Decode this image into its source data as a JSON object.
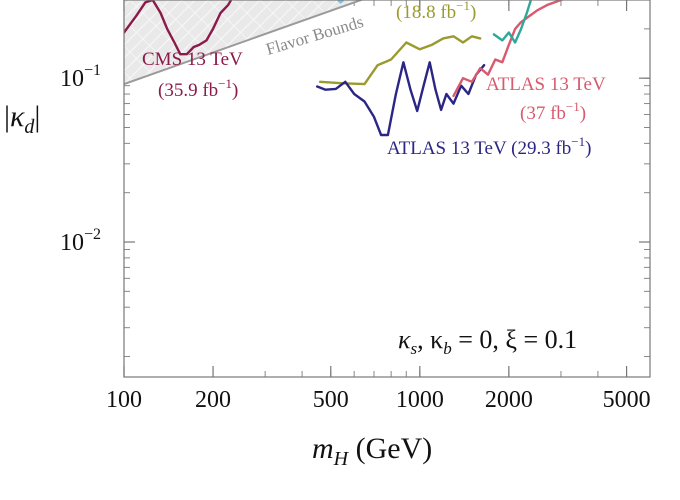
{
  "chart_data": {
    "type": "line",
    "xscale": "log",
    "yscale": "log",
    "xlim": [
      100,
      6000
    ],
    "ylim": [
      0.0015,
      0.3
    ],
    "xticks": [
      {
        "value": 100,
        "label": "100"
      },
      {
        "value": 200,
        "label": "200"
      },
      {
        "value": 500,
        "label": "500"
      },
      {
        "value": 1000,
        "label": "1000"
      },
      {
        "value": 2000,
        "label": "2000"
      },
      {
        "value": 5000,
        "label": "5000"
      }
    ],
    "yticks": [
      {
        "value": 0.1,
        "base": "10",
        "exp": "−1"
      },
      {
        "value": 0.01,
        "base": "10",
        "exp": "−2"
      }
    ],
    "xlabel": {
      "var": "m",
      "sub": "H",
      "unit": " (GeV)"
    },
    "ylabel": {
      "var": "κ",
      "sub": "d"
    },
    "parameters_text": {
      "part1": "κ",
      "sub1": "s",
      "part2": ", κ",
      "sub2": "b",
      "part3": " = 0, ξ = 0.1"
    },
    "flavor_bound": {
      "label": "Flavor Bounds",
      "color": "#9a9a9a",
      "x": [
        100,
        700
      ],
      "y": [
        0.092,
        0.32
      ]
    },
    "series": [
      {
        "name": "CMS 13 TeV",
        "lumi": "(35.9 fb",
        "color": "#8b1a4a",
        "x": [
          100,
          110,
          118,
          125,
          133,
          140,
          148,
          155,
          163,
          172,
          180,
          190,
          200,
          212,
          225,
          235
        ],
        "y": [
          0.19,
          0.24,
          0.29,
          0.3,
          0.25,
          0.2,
          0.165,
          0.14,
          0.14,
          0.155,
          0.16,
          0.17,
          0.2,
          0.25,
          0.28,
          0.32
        ]
      },
      {
        "name": "",
        "lumi": "(18.8 fb",
        "color": "#9a9a2e",
        "x": [
          460,
          550,
          650,
          720,
          800,
          900,
          1000,
          1100,
          1200,
          1300,
          1400,
          1500,
          1600
        ],
        "y": [
          0.095,
          0.093,
          0.092,
          0.12,
          0.13,
          0.165,
          0.15,
          0.16,
          0.175,
          0.18,
          0.165,
          0.18,
          0.175
        ]
      },
      {
        "name": "ATLAS 13 TeV",
        "lumi": "(29.3 fb",
        "color": "#2b2685",
        "x": [
          450,
          480,
          520,
          560,
          600,
          650,
          700,
          740,
          780,
          830,
          880,
          930,
          980,
          1030,
          1080,
          1130,
          1180,
          1230,
          1300,
          1380,
          1460,
          1550,
          1650
        ],
        "y": [
          0.089,
          0.085,
          0.086,
          0.095,
          0.08,
          0.072,
          0.058,
          0.045,
          0.045,
          0.08,
          0.125,
          0.085,
          0.063,
          0.09,
          0.125,
          0.085,
          0.064,
          0.08,
          0.07,
          0.09,
          0.08,
          0.105,
          0.12
        ]
      },
      {
        "name": "ATLAS 13 TeV",
        "lumi": "(37 fb",
        "color": "#d85a6e",
        "x": [
          1300,
          1400,
          1500,
          1600,
          1700,
          1800,
          1900,
          2000,
          2100,
          2200,
          2350,
          2500,
          2700,
          3000,
          3300
        ],
        "y": [
          0.078,
          0.1,
          0.095,
          0.115,
          0.105,
          0.13,
          0.125,
          0.16,
          0.2,
          0.22,
          0.24,
          0.26,
          0.28,
          0.3,
          0.32
        ]
      },
      {
        "name": "",
        "lumi": "",
        "color": "#2fa89a",
        "x": [
          1780,
          1900,
          2000,
          2100,
          2200,
          2300,
          2400
        ],
        "y": [
          0.185,
          0.17,
          0.19,
          0.165,
          0.2,
          0.25,
          0.32
        ]
      },
      {
        "name": "",
        "lumi": "",
        "color": "#6ec6e8",
        "x": [
          510,
          540,
          570
        ],
        "y": [
          0.32,
          0.29,
          0.32
        ]
      }
    ]
  }
}
